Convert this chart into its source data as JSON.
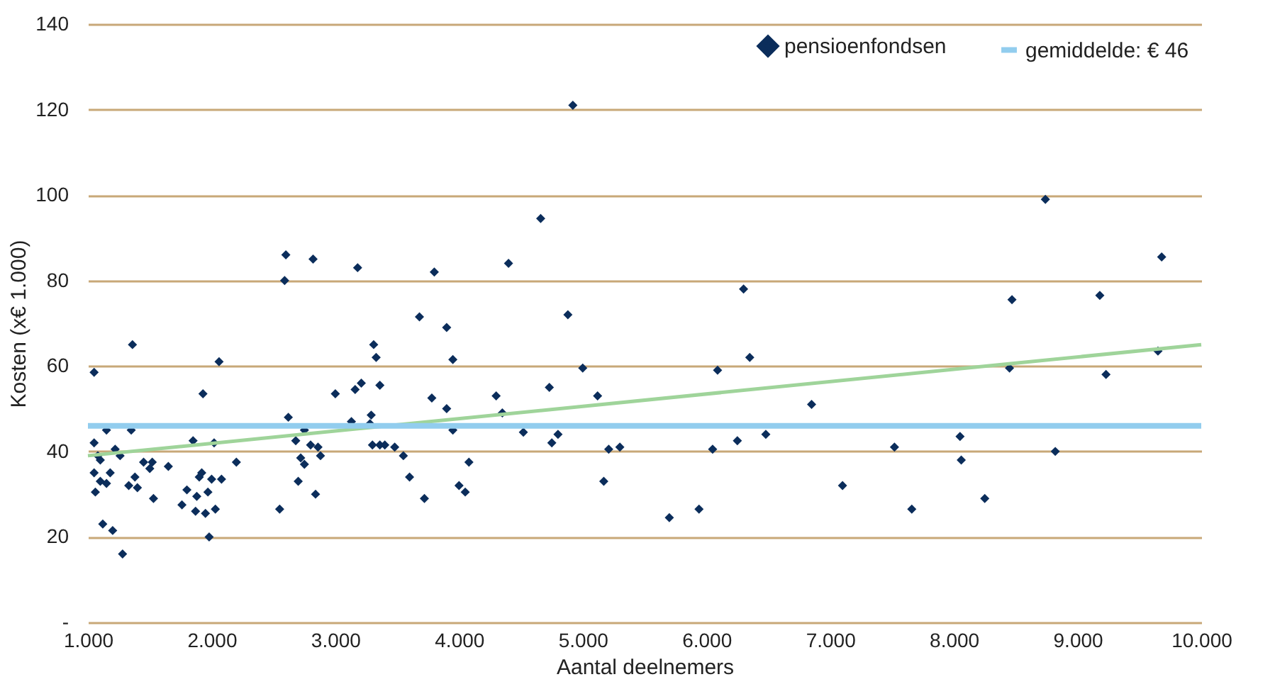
{
  "chart_data": {
    "type": "scatter",
    "xlabel": "Aantal deelnemers",
    "ylabel": "Kosten (x€ 1.000)",
    "xlim": [
      1000,
      10000
    ],
    "ylim": [
      0,
      140
    ],
    "xticks": [
      {
        "value": 1000,
        "label": "1.000"
      },
      {
        "value": 2000,
        "label": "2.000"
      },
      {
        "value": 3000,
        "label": "3.000"
      },
      {
        "value": 4000,
        "label": "4.000"
      },
      {
        "value": 5000,
        "label": "5.000"
      },
      {
        "value": 6000,
        "label": "6.000"
      },
      {
        "value": 7000,
        "label": "7.000"
      },
      {
        "value": 8000,
        "label": "8.000"
      },
      {
        "value": 9000,
        "label": "9.000"
      },
      {
        "value": 10000,
        "label": "10.000"
      }
    ],
    "yticks": [
      {
        "value": 0,
        "label": "-"
      },
      20,
      40,
      60,
      80,
      100,
      120,
      140
    ],
    "grid": "y",
    "legend": "top right",
    "series": [
      {
        "name": "pensioenfondsen",
        "color": "#0b2d5b",
        "marker": "diamond",
        "x": [
          1050,
          1050,
          1050,
          1060,
          1080,
          1100,
          1100,
          1120,
          1150,
          1150,
          1180,
          1200,
          1220,
          1260,
          1280,
          1330,
          1350,
          1360,
          1380,
          1400,
          1450,
          1500,
          1520,
          1530,
          1650,
          1760,
          1800,
          1850,
          1870,
          1880,
          1900,
          1920,
          1930,
          1950,
          1970,
          1980,
          2000,
          2020,
          2030,
          2060,
          2080,
          2200,
          2550,
          2590,
          2600,
          2620,
          2680,
          2700,
          2720,
          2750,
          2750,
          2800,
          2820,
          2840,
          2860,
          2880,
          3000,
          3130,
          3160,
          3180,
          3210,
          3280,
          3290,
          3300,
          3310,
          3330,
          3360,
          3360,
          3400,
          3480,
          3550,
          3600,
          3680,
          3720,
          3780,
          3800,
          3900,
          3900,
          3950,
          3950,
          4000,
          4050,
          4080,
          4300,
          4350,
          4400,
          4520,
          4660,
          4730,
          4750,
          4800,
          4880,
          4920,
          5000,
          5120,
          5170,
          5210,
          5300,
          5700,
          5940,
          6050,
          6090,
          6250,
          6300,
          6350,
          6480,
          6850,
          7100,
          7520,
          7660,
          8050,
          8060,
          8250,
          8450,
          8470,
          8740,
          8820,
          9180,
          9230,
          9650,
          9680
        ],
        "values": [
          58.5,
          42,
          35,
          30.5,
          39,
          38,
          33,
          23,
          45,
          32.5,
          35,
          21.5,
          40.5,
          39,
          16,
          32,
          45,
          65,
          34,
          31.5,
          37.5,
          36,
          37.5,
          29,
          36.5,
          27.5,
          31,
          42.5,
          26,
          29.5,
          34,
          35,
          53.5,
          25.5,
          30.5,
          20,
          33.5,
          42,
          26.5,
          61,
          33.5,
          37.5,
          26.5,
          80,
          86,
          48,
          42.5,
          33,
          38.5,
          37,
          45,
          41.5,
          85,
          30,
          41,
          39,
          53.5,
          47,
          54.5,
          83,
          56,
          46.5,
          48.5,
          41.5,
          65,
          62,
          41.5,
          55.5,
          41.5,
          41,
          39,
          34,
          71.5,
          29,
          52.5,
          82,
          50,
          69,
          61.5,
          45,
          32,
          30.5,
          37.5,
          53,
          49,
          84,
          44.5,
          94.5,
          55,
          42,
          44,
          72,
          121,
          59.5,
          53,
          33,
          40.5,
          41,
          24.5,
          26.5,
          40.5,
          59,
          42.5,
          78,
          62,
          44,
          51,
          32,
          41,
          26.5,
          43.5,
          38,
          29,
          59.5,
          75.5,
          99,
          40,
          76.5,
          58,
          63.5,
          85.5
        ]
      },
      {
        "color": "#9fd49a",
        "type": "line",
        "marker": "none",
        "x": [
          1000,
          10000
        ],
        "values": [
          39,
          65
        ]
      }
    ],
    "ref_lines": [
      {
        "axis": "y",
        "value": 46,
        "label": "gemiddelde: € 46",
        "color": "#92cdee"
      }
    ]
  }
}
